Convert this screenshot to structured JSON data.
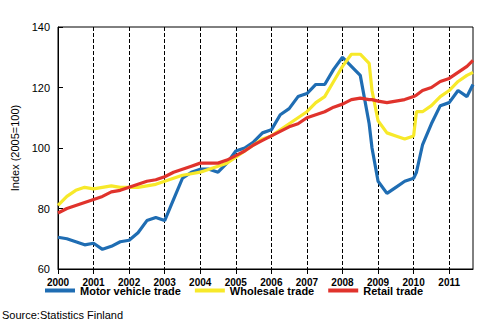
{
  "chart_data": {
    "type": "line",
    "y_label": "Index (2005=100)",
    "annotations": [
      "Source:Statistics Finland"
    ],
    "x": [
      2000,
      2000.25,
      2000.5,
      2000.75,
      2001,
      2001.25,
      2001.5,
      2001.75,
      2002,
      2002.25,
      2002.5,
      2002.75,
      2003,
      2003.25,
      2003.5,
      2003.75,
      2004,
      2004.25,
      2004.5,
      2004.75,
      2005,
      2005.25,
      2005.5,
      2005.75,
      2006,
      2006.25,
      2006.5,
      2006.75,
      2007,
      2007.25,
      2007.5,
      2007.75,
      2008,
      2008.25,
      2008.5,
      2008.75,
      2008.83,
      2009,
      2009.25,
      2009.5,
      2009.75,
      2010,
      2010.08,
      2010.25,
      2010.5,
      2010.75,
      2011,
      2011.25,
      2011.5,
      2011.67
    ],
    "series": [
      {
        "name": "Motor vehicle trade",
        "color": "#1f6db3",
        "values": [
          70.5,
          70,
          69,
          68,
          68.5,
          66.5,
          67.5,
          69,
          69.5,
          72,
          76,
          77,
          76,
          83,
          90,
          92,
          93,
          93,
          92,
          95,
          99,
          100,
          102,
          105,
          106,
          111,
          113,
          117,
          118,
          121,
          121,
          126,
          130,
          127,
          124,
          108,
          100,
          89,
          85,
          87,
          89,
          90,
          92,
          101,
          108,
          114,
          115,
          119,
          117,
          121
        ]
      },
      {
        "name": "Wholesale trade",
        "color": "#f7e92a",
        "values": [
          81,
          84,
          86,
          87,
          86.5,
          87,
          87.5,
          87,
          87,
          87,
          87.5,
          88,
          89,
          90,
          91,
          91.5,
          92,
          93,
          94,
          95,
          97,
          99,
          101,
          103,
          104,
          106,
          108,
          110,
          112,
          115,
          117,
          122,
          127,
          131,
          131,
          128,
          119,
          109,
          105,
          104,
          103,
          104,
          112,
          112,
          114,
          117,
          119,
          122,
          124,
          125
        ]
      },
      {
        "name": "Retail trade",
        "color": "#e0332c",
        "values": [
          78.5,
          80,
          81,
          82,
          83,
          84,
          85.5,
          86,
          87,
          88,
          89,
          89.5,
          90.5,
          92,
          93,
          94,
          95,
          95,
          95,
          96,
          97.5,
          99,
          101,
          102.5,
          104,
          105.5,
          107,
          108,
          110,
          111,
          112,
          113.5,
          114.5,
          116,
          116.5,
          116,
          116,
          115.5,
          115,
          115.5,
          116,
          117,
          117.5,
          119,
          120,
          122,
          123,
          125,
          127,
          129
        ]
      }
    ],
    "xlim": [
      2000,
      2011.67
    ],
    "xticks": [
      2000,
      2001,
      2002,
      2003,
      2004,
      2005,
      2006,
      2007,
      2008,
      2009,
      2010,
      2011
    ],
    "ylim": [
      60,
      140
    ],
    "yticks": [
      60,
      80,
      100,
      120,
      140
    ],
    "grid": true,
    "legend": "bottom"
  }
}
